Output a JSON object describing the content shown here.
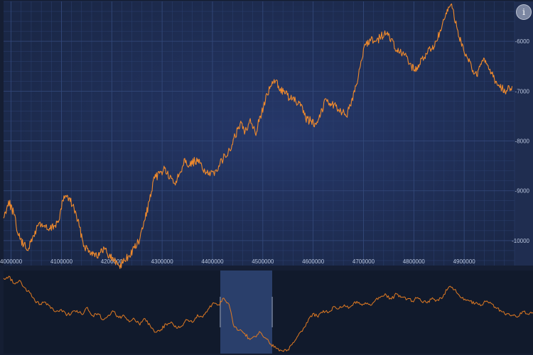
{
  "info_button": {
    "glyph": "i",
    "icon": "info-icon"
  },
  "colors": {
    "background": "#1c2a4a",
    "navigator_background": "#111a2c",
    "series": "#f08a2c",
    "selection": "#2a3f6b"
  },
  "chart_data": {
    "type": "line",
    "title": "",
    "xlabel": "",
    "ylabel": "",
    "y_axis_position": "right",
    "grid": true,
    "xlim": [
      3985000,
      5000000
    ],
    "ylim": [
      -10500,
      -5200
    ],
    "x_ticks": [
      4000000,
      4100000,
      4200000,
      4300000,
      4400000,
      4500000,
      4600000,
      4700000,
      4800000,
      4900000
    ],
    "x_tick_labels": [
      "4000000",
      "4100000",
      "4200000",
      "4300000",
      "4400000",
      "4500000",
      "4600000",
      "4700000",
      "4800000",
      "4900000"
    ],
    "y_ticks": [
      -6000,
      -7000,
      -8000,
      -9000,
      -10000
    ],
    "y_tick_labels": [
      "-6000",
      "-7000",
      "-8000",
      "-9000",
      "-10000"
    ],
    "series": [
      {
        "x": [
          3985000,
          3995000,
          4005000,
          4015000,
          4025000,
          4035000,
          4045000,
          4055000,
          4065000,
          4075000,
          4085000,
          4095000,
          4105000,
          4115000,
          4125000,
          4135000,
          4145000,
          4155000,
          4165000,
          4175000,
          4185000,
          4195000,
          4205000,
          4215000,
          4225000,
          4235000,
          4245000,
          4255000,
          4265000,
          4275000,
          4285000,
          4295000,
          4305000,
          4315000,
          4325000,
          4335000,
          4345000,
          4355000,
          4365000,
          4375000,
          4385000,
          4395000,
          4405000,
          4415000,
          4425000,
          4435000,
          4445000,
          4455000,
          4465000,
          4475000,
          4485000,
          4495000,
          4505000,
          4515000,
          4525000,
          4535000,
          4545000,
          4555000,
          4565000,
          4575000,
          4585000,
          4595000,
          4605000,
          4615000,
          4625000,
          4635000,
          4645000,
          4655000,
          4665000,
          4675000,
          4685000,
          4695000,
          4705000,
          4715000,
          4725000,
          4735000,
          4745000,
          4755000,
          4765000,
          4775000,
          4785000,
          4795000,
          4805000,
          4815000,
          4825000,
          4835000,
          4845000,
          4855000,
          4865000,
          4875000,
          4885000,
          4895000,
          4905000,
          4915000,
          4925000,
          4935000,
          4945000,
          4955000,
          4965000,
          4975000,
          4985000,
          4995000
        ],
        "y": [
          -9550,
          -9200,
          -9450,
          -9900,
          -10100,
          -10150,
          -9900,
          -9650,
          -9700,
          -9800,
          -9700,
          -9600,
          -9100,
          -9150,
          -9350,
          -9700,
          -10100,
          -10200,
          -10250,
          -10300,
          -10150,
          -10300,
          -10400,
          -10500,
          -10400,
          -10300,
          -10150,
          -10000,
          -9600,
          -9200,
          -8750,
          -8650,
          -8550,
          -8750,
          -8850,
          -8650,
          -8350,
          -8500,
          -8400,
          -8450,
          -8600,
          -8700,
          -8600,
          -8450,
          -8300,
          -8200,
          -7900,
          -7650,
          -7800,
          -7550,
          -7850,
          -7500,
          -7200,
          -6900,
          -6800,
          -6950,
          -7050,
          -7150,
          -7200,
          -7300,
          -7550,
          -7600,
          -7650,
          -7450,
          -7150,
          -7250,
          -7300,
          -7400,
          -7500,
          -7300,
          -6900,
          -6400,
          -6050,
          -5950,
          -6000,
          -5900,
          -5850,
          -5950,
          -6200,
          -6250,
          -6300,
          -6500,
          -6600,
          -6350,
          -6250,
          -6150,
          -6000,
          -5750,
          -5450,
          -5250,
          -5700,
          -6100,
          -6300,
          -6550,
          -6700,
          -6400,
          -6450,
          -6650,
          -6850,
          -6950,
          -7000,
          -6900
        ]
      }
    ],
    "navigator": {
      "y": [
        -5050,
        -5010,
        -5150,
        -5090,
        -5230,
        -5330,
        -5490,
        -5550,
        -5510,
        -5630,
        -5690,
        -5650,
        -5770,
        -5710,
        -5670,
        -5750,
        -5610,
        -5770,
        -5730,
        -5850,
        -5760,
        -5690,
        -5810,
        -5770,
        -5890,
        -5840,
        -5950,
        -5830,
        -5970,
        -6090,
        -6040,
        -5930,
        -5890,
        -6010,
        -5970,
        -5850,
        -5900,
        -5750,
        -5800,
        -5650,
        -5520,
        -5560,
        -5430,
        -5550,
        -5990,
        -6050,
        -6110,
        -6230,
        -6170,
        -6090,
        -6200,
        -6320,
        -6400,
        -6440,
        -6450,
        -6330,
        -6180,
        -6070,
        -5900,
        -5730,
        -5800,
        -5670,
        -5710,
        -5590,
        -5630,
        -5560,
        -5610,
        -5500,
        -5550,
        -5520,
        -5570,
        -5460,
        -5400,
        -5370,
        -5450,
        -5350,
        -5410,
        -5450,
        -5490,
        -5420,
        -5520,
        -5490,
        -5450,
        -5480,
        -5360,
        -5210,
        -5270,
        -5390,
        -5450,
        -5490,
        -5530,
        -5580,
        -5500,
        -5530,
        -5630,
        -5690,
        -5730,
        -5760,
        -5800,
        -5690,
        -5740,
        -5710
      ],
      "ylim": [
        -6500,
        -4900
      ],
      "selection": [
        4505000,
        4625000
      ]
    }
  }
}
